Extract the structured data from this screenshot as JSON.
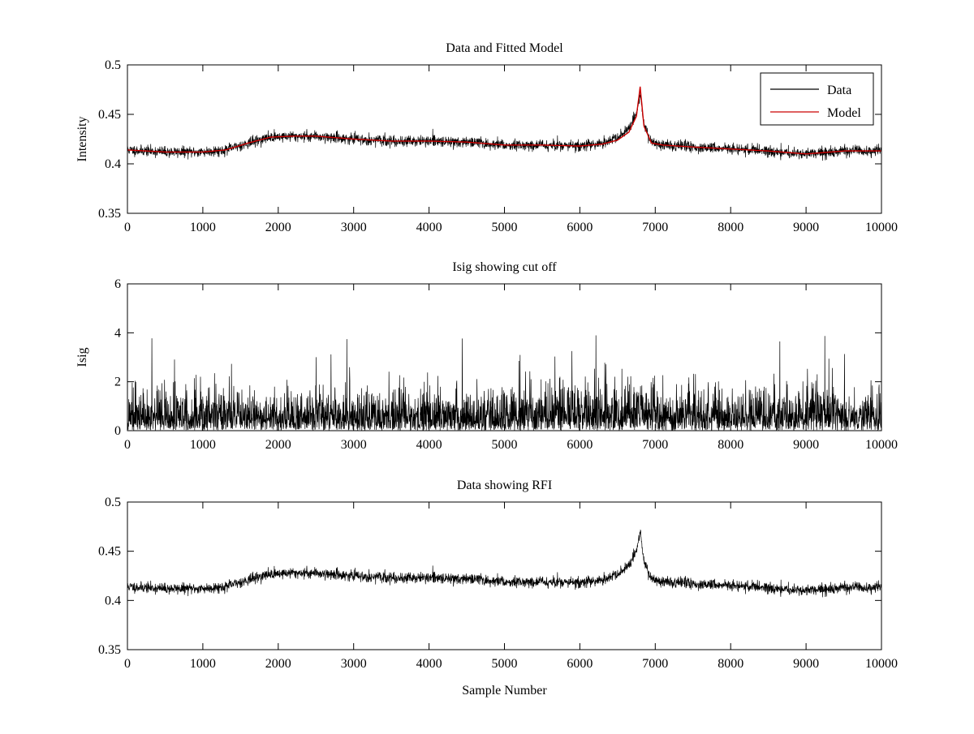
{
  "chart_data": [
    {
      "type": "line",
      "title": "Data and Fitted Model",
      "xlabel": "",
      "ylabel": "Intensity",
      "xlim": [
        0,
        10000
      ],
      "ylim": [
        0.35,
        0.5
      ],
      "xticks": [
        0,
        1000,
        2000,
        3000,
        4000,
        5000,
        6000,
        7000,
        8000,
        9000,
        10000
      ],
      "yticks": [
        0.35,
        0.4,
        0.45,
        0.5
      ],
      "xtick_labels": [
        "0",
        "1000",
        "2000",
        "3000",
        "4000",
        "5000",
        "6000",
        "7000",
        "8000",
        "9000",
        "10000"
      ],
      "ytick_labels": [
        "0.35",
        "0.4",
        "0.45",
        "0.5"
      ],
      "grid": false,
      "legend": {
        "position": "top-right",
        "entries": [
          "Data",
          "Model"
        ]
      },
      "series": [
        {
          "name": "Data",
          "color": "#000000",
          "kind": "noisy",
          "noise_amplitude": 0.006,
          "noise_seed": 11,
          "baseline": {
            "x": [
              0,
              500,
              1000,
              1300,
              1600,
              1900,
              2200,
              2500,
              3000,
              3500,
              4000,
              4500,
              5000,
              5500,
              6000,
              6300,
              6500,
              6650,
              6750,
              6800,
              6850,
              6950,
              7100,
              7500,
              8000,
              8500,
              9000,
              9500,
              10000
            ],
            "y": [
              0.414,
              0.412,
              0.412,
              0.414,
              0.421,
              0.427,
              0.428,
              0.428,
              0.425,
              0.423,
              0.423,
              0.422,
              0.419,
              0.419,
              0.418,
              0.421,
              0.426,
              0.435,
              0.45,
              0.47,
              0.44,
              0.422,
              0.419,
              0.417,
              0.415,
              0.413,
              0.41,
              0.413,
              0.413
            ]
          }
        },
        {
          "name": "Model",
          "color": "#cc0000",
          "kind": "smooth",
          "x": [
            0,
            500,
            1000,
            1300,
            1600,
            1900,
            2200,
            2500,
            3000,
            3500,
            4000,
            4500,
            5000,
            5500,
            6000,
            6300,
            6500,
            6650,
            6750,
            6800,
            6850,
            6950,
            7100,
            7500,
            8000,
            8500,
            9000,
            9500,
            10000
          ],
          "y": [
            0.414,
            0.412,
            0.412,
            0.414,
            0.421,
            0.427,
            0.428,
            0.428,
            0.425,
            0.423,
            0.423,
            0.422,
            0.419,
            0.419,
            0.418,
            0.42,
            0.424,
            0.432,
            0.448,
            0.478,
            0.438,
            0.421,
            0.419,
            0.417,
            0.415,
            0.413,
            0.41,
            0.413,
            0.413
          ]
        }
      ]
    },
    {
      "type": "line",
      "title": "Isig showing cut off",
      "xlabel": "",
      "ylabel": "Isig",
      "xlim": [
        0,
        10000
      ],
      "ylim": [
        0,
        6
      ],
      "xticks": [
        0,
        1000,
        2000,
        3000,
        4000,
        5000,
        6000,
        7000,
        8000,
        9000,
        10000
      ],
      "yticks": [
        0,
        2,
        4,
        6
      ],
      "xtick_labels": [
        "0",
        "1000",
        "2000",
        "3000",
        "4000",
        "5000",
        "6000",
        "7000",
        "8000",
        "9000",
        "10000"
      ],
      "ytick_labels": [
        "0",
        "2",
        "4",
        "6"
      ],
      "grid": false,
      "legend": null,
      "series": [
        {
          "name": "Isig",
          "color": "#000000",
          "kind": "abs_noise",
          "typical_max": 2.5,
          "peak_max": 3.9,
          "noise_seed": 23,
          "baseline": {
            "x": [
              0,
              10000
            ],
            "y": [
              0,
              0
            ]
          }
        }
      ]
    },
    {
      "type": "line",
      "title": "Data showing RFI",
      "xlabel": "Sample Number",
      "ylabel": "",
      "xlim": [
        0,
        10000
      ],
      "ylim": [
        0.35,
        0.5
      ],
      "xticks": [
        0,
        1000,
        2000,
        3000,
        4000,
        5000,
        6000,
        7000,
        8000,
        9000,
        10000
      ],
      "yticks": [
        0.35,
        0.4,
        0.45,
        0.5
      ],
      "xtick_labels": [
        "0",
        "1000",
        "2000",
        "3000",
        "4000",
        "5000",
        "6000",
        "7000",
        "8000",
        "9000",
        "10000"
      ],
      "ytick_labels": [
        "0.35",
        "0.4",
        "0.45",
        "0.5"
      ],
      "grid": false,
      "legend": null,
      "series": [
        {
          "name": "Data",
          "color": "#000000",
          "kind": "noisy",
          "noise_amplitude": 0.006,
          "noise_seed": 11,
          "baseline": {
            "x": [
              0,
              500,
              1000,
              1300,
              1600,
              1900,
              2200,
              2500,
              3000,
              3500,
              4000,
              4500,
              5000,
              5500,
              6000,
              6300,
              6500,
              6650,
              6750,
              6800,
              6850,
              6950,
              7100,
              7500,
              8000,
              8500,
              9000,
              9500,
              10000
            ],
            "y": [
              0.414,
              0.412,
              0.412,
              0.414,
              0.421,
              0.427,
              0.428,
              0.428,
              0.425,
              0.423,
              0.423,
              0.422,
              0.419,
              0.419,
              0.418,
              0.421,
              0.426,
              0.435,
              0.45,
              0.47,
              0.44,
              0.422,
              0.419,
              0.417,
              0.415,
              0.413,
              0.41,
              0.413,
              0.413
            ]
          }
        }
      ]
    }
  ]
}
